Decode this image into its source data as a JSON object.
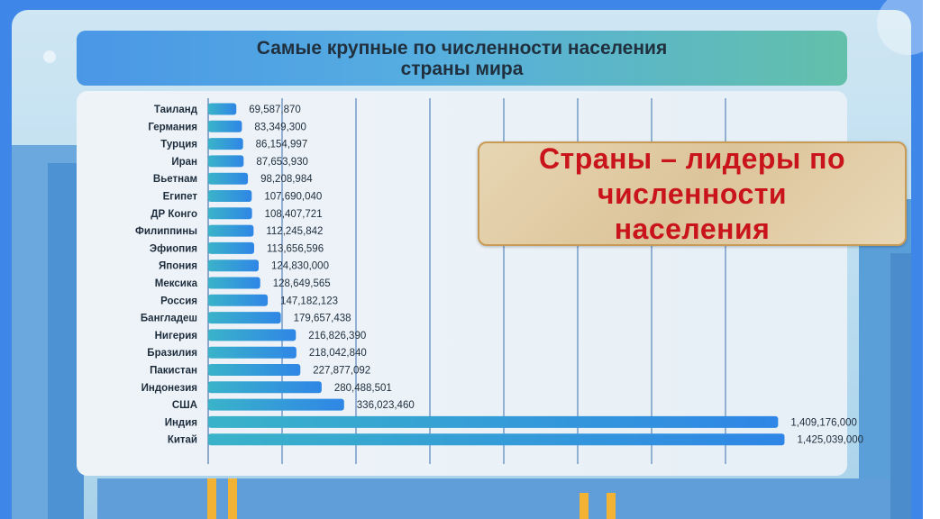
{
  "title": {
    "line1": "Самые крупные по численности населения",
    "line2": "страны мира"
  },
  "callout": {
    "line1": "Страны – лидеры по",
    "line2": "численности",
    "line3": "населения"
  },
  "colors": {
    "frame": "#3e87e9",
    "bar_left": "#3ab3c9",
    "bar_right": "#2f86e6",
    "callout_text": "#c8141a"
  },
  "chart_data": {
    "type": "bar",
    "orientation": "horizontal",
    "categories": [
      "Таиланд",
      "Германия",
      "Турция",
      "Иран",
      "Вьетнам",
      "Египет",
      "ДР Конго",
      "Филиппины",
      "Эфиопия",
      "Япония",
      "Мексика",
      "Россия",
      "Бангладеш",
      "Нигерия",
      "Бразилия",
      "Пакистан",
      "Индонезия",
      "США",
      "Индия",
      "Китай"
    ],
    "values": [
      69587870,
      83349300,
      86154997,
      87653930,
      98208984,
      107690040,
      108407721,
      112245842,
      113656596,
      124830000,
      128649565,
      147182123,
      179657438,
      216826390,
      218042840,
      227877092,
      280488501,
      336023460,
      1409176000,
      1425039000
    ],
    "value_labels": [
      "69,587,870",
      "83,349,300",
      "86,154,997",
      "87,653,930",
      "98,208,984",
      "107,690,040",
      "108,407,721",
      "112,245,842",
      "113,656,596",
      "124,830,000",
      "128,649,565",
      "147,182,123",
      "179,657,438",
      "216,826,390",
      "218,042,840",
      "227,877,092",
      "280,488,501",
      "336,023,460",
      "1,409,176,000",
      "1,425,039,000"
    ],
    "xlim": [
      0,
      1600000000
    ],
    "grid": true,
    "legend": "none"
  }
}
